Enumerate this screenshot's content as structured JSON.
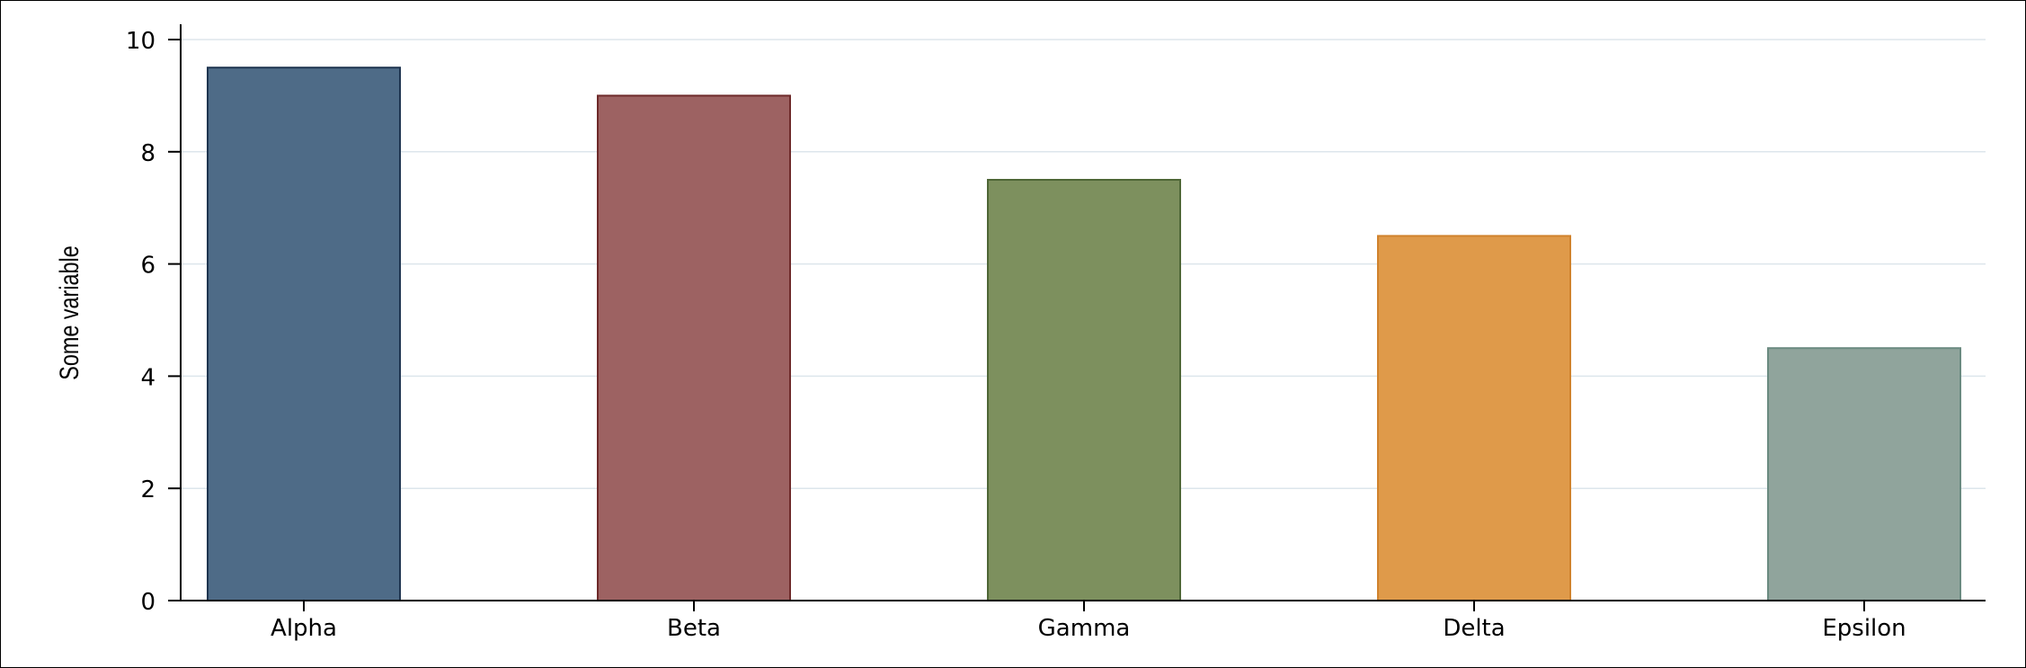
{
  "chart_data": {
    "type": "bar",
    "title": "",
    "xlabel": "",
    "ylabel": "Some variable",
    "categories": [
      "Alpha",
      "Beta",
      "Gamma",
      "Delta",
      "Epsilon"
    ],
    "values": [
      9.5,
      9.0,
      7.5,
      6.5,
      4.5
    ],
    "ylim": [
      0,
      10
    ],
    "yticks": [
      0,
      2,
      4,
      6,
      8,
      10
    ],
    "ytick_labels": [
      "0",
      "2",
      "4",
      "6",
      "8",
      "10"
    ],
    "grid": true,
    "legend": "none",
    "bar_colors": [
      "#4e6b87",
      "#9d6262",
      "#7d905e",
      "#df9a4a",
      "#90a49c"
    ],
    "bar_edge_colors": [
      "#1f3550",
      "#6e2a2a",
      "#4e6636",
      "#d0822c",
      "#6a8a80"
    ],
    "grid_color": "#dde6ec",
    "axis_color": "#000000"
  }
}
